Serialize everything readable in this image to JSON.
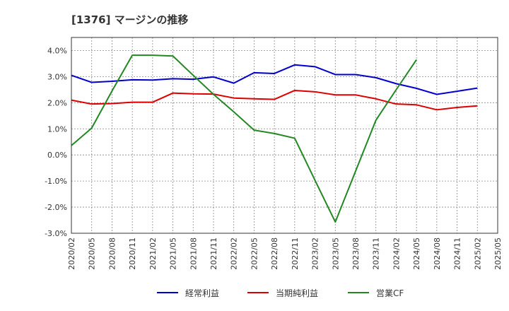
{
  "chart_data": {
    "type": "line",
    "title": "[1376]  マージンの推移",
    "xlabel": "",
    "ylabel": "",
    "ylim": [
      -3.0,
      4.5
    ],
    "yticks": [
      -3.0,
      -2.0,
      -1.0,
      0.0,
      1.0,
      2.0,
      3.0,
      4.0
    ],
    "ytick_labels": [
      "-3.0%",
      "-2.0%",
      "-1.0%",
      "0.0%",
      "1.0%",
      "2.0%",
      "3.0%",
      "4.0%"
    ],
    "categories": [
      "2020/02",
      "2020/05",
      "2020/08",
      "2020/11",
      "2021/02",
      "2021/05",
      "2021/08",
      "2021/11",
      "2022/02",
      "2022/05",
      "2022/08",
      "2022/11",
      "2023/02",
      "2023/05",
      "2023/08",
      "2023/11",
      "2024/02",
      "2024/05",
      "2024/08",
      "2024/11",
      "2025/02",
      "2025/05"
    ],
    "grid": true,
    "legend_position": "bottom",
    "series": [
      {
        "name": "経常利益",
        "color": "#0000cc",
        "values": [
          3.05,
          2.78,
          2.82,
          2.88,
          2.87,
          2.92,
          2.9,
          2.99,
          2.75,
          3.15,
          3.12,
          3.45,
          3.38,
          3.08,
          3.08,
          2.96,
          2.73,
          2.55,
          2.32,
          2.44,
          2.56,
          null
        ]
      },
      {
        "name": "当期純利益",
        "color": "#dd0000",
        "values": [
          2.1,
          1.95,
          1.97,
          2.02,
          2.02,
          2.37,
          2.34,
          2.33,
          2.18,
          2.15,
          2.13,
          2.47,
          2.42,
          2.3,
          2.3,
          2.15,
          1.95,
          1.92,
          1.73,
          1.82,
          1.88,
          null
        ]
      },
      {
        "name": "営業CF",
        "color": "#228822",
        "values": [
          0.36,
          1.03,
          2.45,
          3.82,
          3.82,
          3.79,
          3.05,
          2.32,
          1.65,
          0.95,
          0.82,
          0.64,
          -0.97,
          -2.57,
          -0.62,
          1.33,
          2.5,
          3.65,
          null,
          null,
          null,
          null
        ]
      }
    ]
  }
}
